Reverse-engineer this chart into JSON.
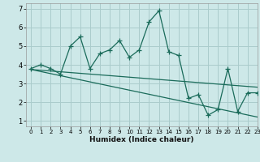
{
  "title": "",
  "xlabel": "Humidex (Indice chaleur)",
  "ylabel": "",
  "bg_color": "#cde8e8",
  "grid_color": "#aacccc",
  "line_color": "#1a6b5a",
  "xlim": [
    -0.5,
    23
  ],
  "ylim": [
    0.7,
    7.3
  ],
  "xticks": [
    0,
    1,
    2,
    3,
    4,
    5,
    6,
    7,
    8,
    9,
    10,
    11,
    12,
    13,
    14,
    15,
    16,
    17,
    18,
    19,
    20,
    21,
    22,
    23
  ],
  "yticks": [
    1,
    2,
    3,
    4,
    5,
    6,
    7
  ],
  "series1_x": [
    0,
    1,
    2,
    3,
    4,
    5,
    6,
    7,
    8,
    9,
    10,
    11,
    12,
    13,
    14,
    15,
    16,
    17,
    18,
    19,
    20,
    21,
    22,
    23
  ],
  "series1_y": [
    3.8,
    4.0,
    3.8,
    3.5,
    5.0,
    5.5,
    3.8,
    4.6,
    4.8,
    5.3,
    4.4,
    4.8,
    6.3,
    6.9,
    4.7,
    4.5,
    2.2,
    2.4,
    1.3,
    1.6,
    3.8,
    1.5,
    2.5,
    2.5
  ],
  "trend1_x": [
    0,
    23
  ],
  "trend1_y": [
    3.75,
    2.8
  ],
  "trend2_x": [
    0,
    23
  ],
  "trend2_y": [
    3.75,
    1.2
  ]
}
